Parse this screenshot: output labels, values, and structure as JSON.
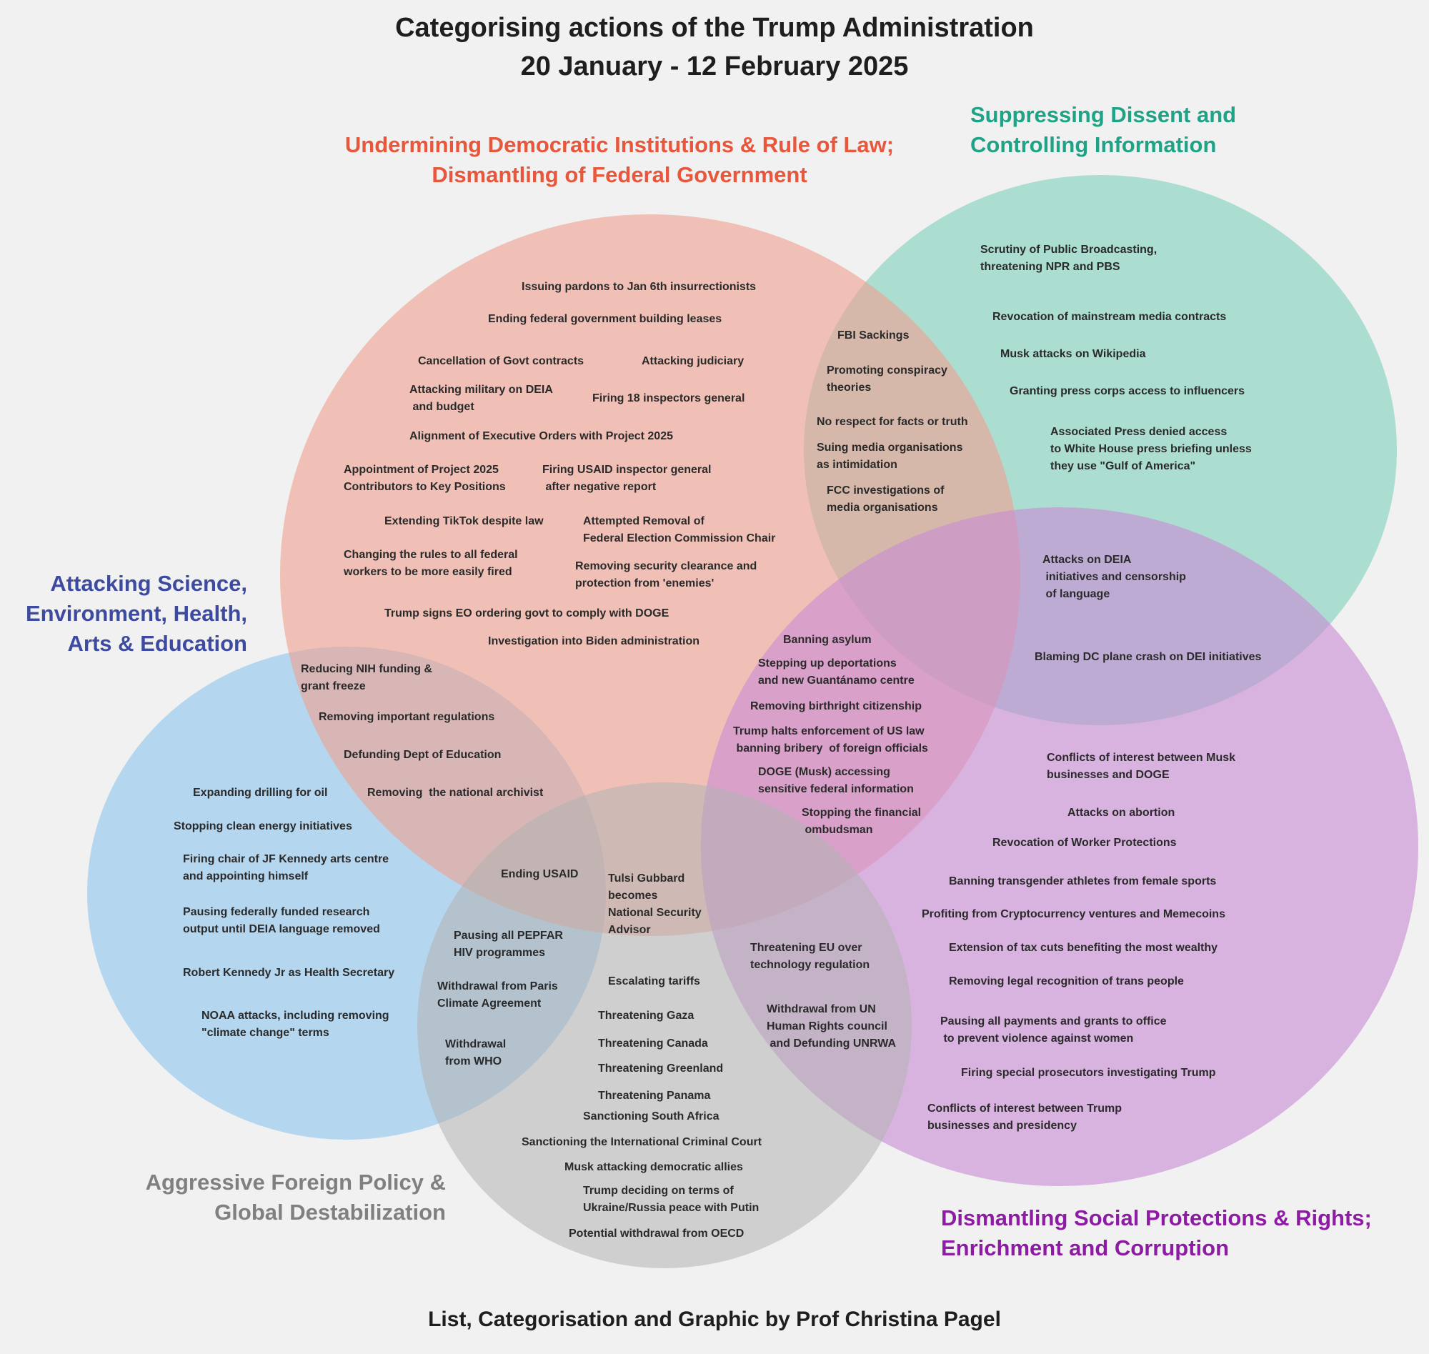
{
  "title_line1": "Categorising actions of the Trump Administration",
  "title_line2": "20 January - 12 February 2025",
  "credit": "List, Categorisation and Graphic by Prof Christina Pagel",
  "colors": {
    "democracy": "#e8563b",
    "dissent": "#1fa387",
    "science": "#3c4aa0",
    "foreign": "#808080",
    "social": "#8e1ba3",
    "circle_democracy": "#f0a08f",
    "circle_dissent": "#7fd0bd",
    "circle_science": "#8ec5ee",
    "circle_foreign": "#b3b3b3",
    "circle_social": "#c98ad6"
  },
  "categories": {
    "democracy": "Undermining Democratic Institutions & Rule of Law;\nDismantling of Federal Government",
    "dissent": "Suppressing Dissent and\nControlling Information",
    "science": "Attacking Science,\nEnvironment, Health,\nArts & Education",
    "foreign": "Aggressive Foreign Policy &\nGlobal Destabilization",
    "social": "Dismantling Social Protections & Rights;\nEnrichment and Corruption"
  },
  "items": [
    "Issuing pardons to Jan 6th insurrectionists",
    "Ending federal government building leases",
    "Cancellation of Govt contracts",
    "Attacking judiciary",
    "Attacking military on DEIA\n and budget",
    "Firing 18 inspectors general",
    "Alignment of Executive Orders with Project 2025",
    "Appointment of Project 2025\nContributors to Key Positions",
    "Firing USAID inspector general\n after negative report",
    "Extending TikTok despite law",
    "Attempted Removal of\nFederal Election Commission Chair",
    "Changing the rules to all federal\nworkers to be more easily fired",
    "Removing security clearance and\nprotection from 'enemies'",
    "Trump signs EO ordering govt to comply with DOGE",
    "Investigation into Biden administration",
    "FBI Sackings",
    "Promoting conspiracy\ntheories",
    "No respect for facts or truth",
    "Suing media organisations\nas intimidation",
    "FCC investigations of\nmedia organisations",
    "Scrutiny of Public Broadcasting,\nthreatening NPR and PBS",
    "Revocation of mainstream media contracts",
    "Musk attacks on Wikipedia",
    "Granting press corps access to influencers",
    "Associated Press denied access\nto White House press briefing unless\nthey use \"Gulf of America\"",
    "Attacks on DEIA\n initiatives and censorship\n of language",
    "Blaming DC plane crash on DEI initiatives",
    "Banning asylum",
    "Stepping up deportations\nand new Guantánamo centre",
    "Removing birthright citizenship",
    "Trump halts enforcement of US law\n banning bribery  of foreign officials",
    "DOGE (Musk) accessing\nsensitive federal information",
    "Stopping the financial\n ombudsman",
    "Reducing NIH funding &\ngrant freeze",
    "Removing important regulations",
    "Defunding Dept of Education",
    "Expanding drilling for oil",
    "Removing  the national archivist",
    "Stopping clean energy initiatives",
    "Firing chair of JF Kennedy arts centre\nand appointing himself",
    "Pausing federally funded research\noutput until DEIA language removed",
    "Robert Kennedy Jr as Health Secretary",
    "NOAA attacks, including removing\n\"climate change\" terms",
    "Ending USAID",
    "Tulsi Gubbard\nbecomes\nNational Security\nAdvisor",
    "Pausing all PEPFAR\nHIV programmes",
    "Withdrawal from Paris\nClimate Agreement",
    "Withdrawal\nfrom WHO",
    "Escalating tariffs",
    "Threatening Gaza",
    "Threatening Canada",
    "Threatening Greenland",
    "Threatening Panama",
    "Sanctioning South Africa",
    "Sanctioning the International Criminal Court",
    "Musk attacking democratic allies",
    "Trump deciding on terms of\nUkraine/Russia peace with Putin",
    "Potential withdrawal from OECD",
    "Threatening EU over\ntechnology regulation",
    "Withdrawal from UN\nHuman Rights council\n and Defunding UNRWA",
    "Conflicts of interest between Musk\nbusinesses and DOGE",
    "Attacks on abortion",
    "Revocation of Worker Protections",
    "Banning transgender athletes from female sports",
    "Profiting from Cryptocurrency ventures and Memecoins",
    "Extension of tax cuts benefiting the most wealthy",
    "Removing legal recognition of trans people",
    "Pausing all payments and grants to office\n to prevent violence against women",
    "Firing special prosecutors investigating Trump",
    "Conflicts of interest between Trump\nbusinesses and presidency"
  ]
}
